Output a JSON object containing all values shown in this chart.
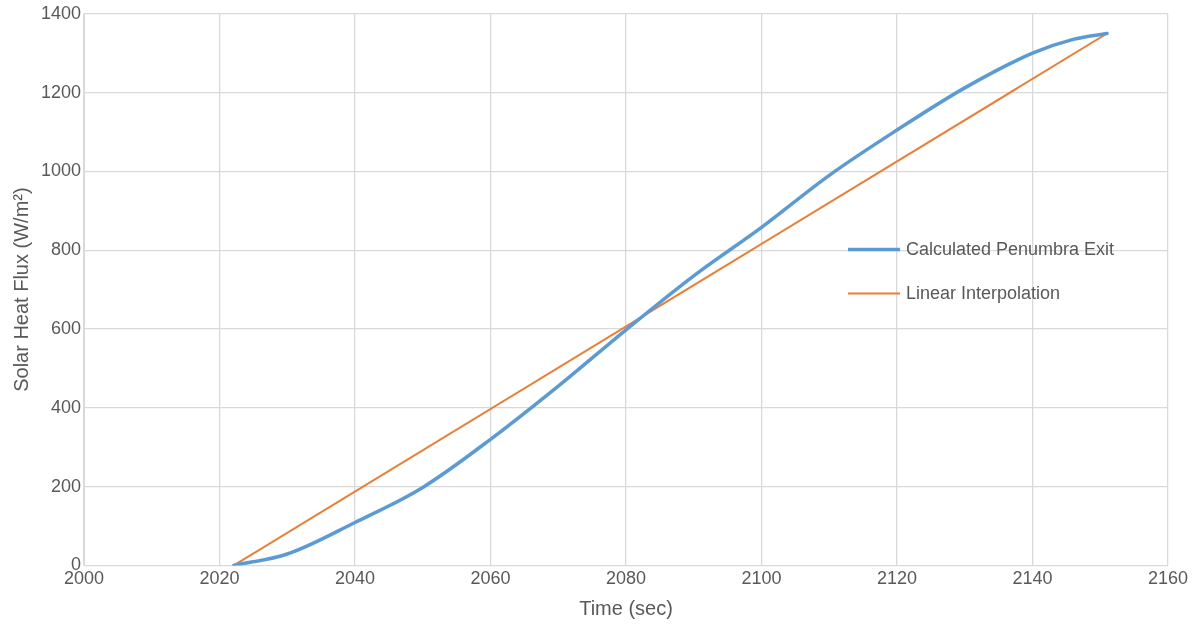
{
  "chart_data": {
    "type": "line",
    "xlabel": "Time (sec)",
    "ylabel": "Solar Heat Flux (W/m²)",
    "xlim": [
      2000,
      2160
    ],
    "xticks": [
      2000,
      2020,
      2040,
      2060,
      2080,
      2100,
      2120,
      2140,
      2160
    ],
    "ylim": [
      0,
      1400
    ],
    "yticks": [
      0,
      200,
      400,
      600,
      800,
      1000,
      1200,
      1400
    ],
    "grid": true,
    "legend": "right",
    "marker": "none",
    "line_style": "solid",
    "series": [
      {
        "name": "Calculated Penumbra Exit",
        "color": "#5b9bd5",
        "x": [
          2022.1,
          2030,
          2040,
          2050,
          2060,
          2070,
          2080,
          2090,
          2100,
          2110,
          2120,
          2130,
          2140,
          2146,
          2151
        ],
        "values": [
          0,
          29,
          109,
          198,
          320,
          455,
          598,
          735,
          858,
          990,
          1105,
          1212,
          1300,
          1335,
          1350
        ]
      },
      {
        "name": "Linear Interpolation",
        "color": "#ed7d31",
        "x": [
          2022.1,
          2151
        ],
        "values": [
          0,
          1350
        ]
      }
    ]
  }
}
